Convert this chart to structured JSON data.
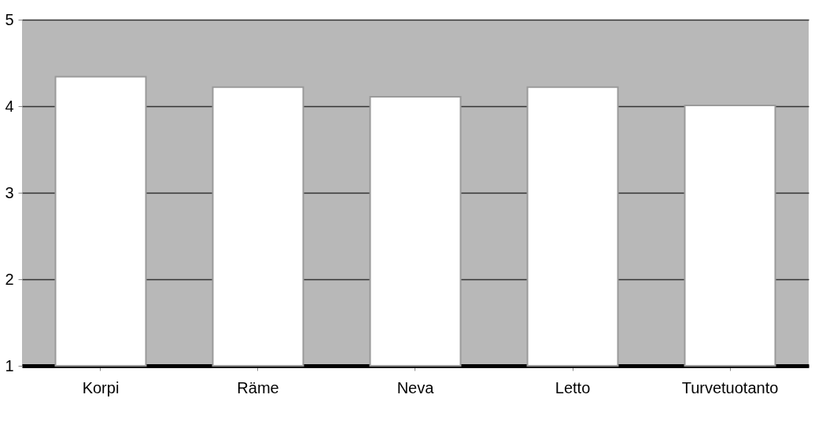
{
  "chart_data": {
    "type": "bar",
    "categories": [
      "Korpi",
      "Räme",
      "Neva",
      "Letto",
      "Turvetuotanto"
    ],
    "values": [
      4.34,
      4.22,
      4.11,
      4.22,
      4.01
    ],
    "color": "#ffffff",
    "ylim": [
      1,
      5
    ],
    "yticks": [
      1,
      2,
      3,
      4,
      5
    ],
    "grid": "y"
  }
}
